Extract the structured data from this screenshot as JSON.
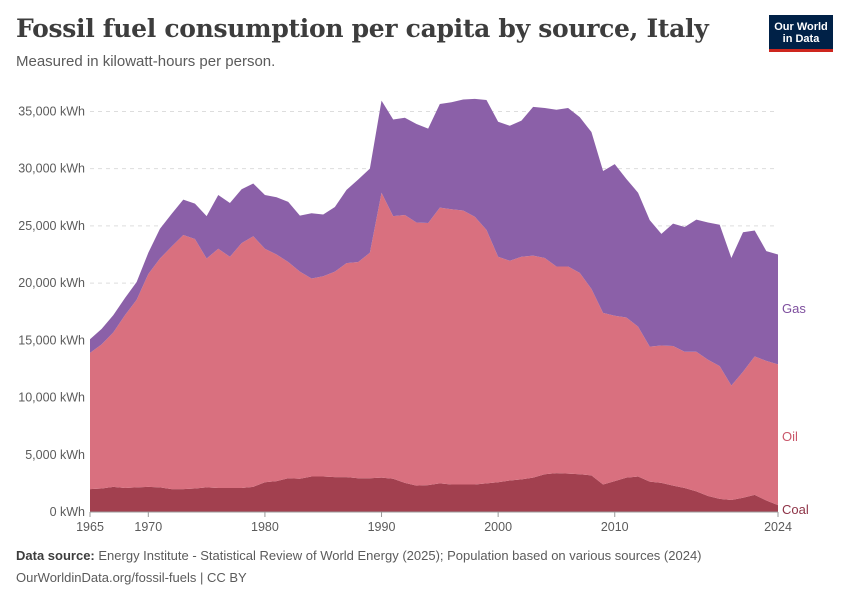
{
  "header": {
    "title": "Fossil fuel consumption per capita by source, Italy",
    "subtitle": "Measured in kilowatt-hours per person."
  },
  "logo": {
    "line1": "Our World",
    "line2": "in Data"
  },
  "footer": {
    "source_label": "Data source:",
    "source_text": "Energy Institute - Statistical Review of World Energy (2025); Population based on various sources (2024)",
    "url_text": "OurWorldinData.org/fossil-fuels | CC BY"
  },
  "chart_data": {
    "type": "area",
    "stacked": true,
    "x": [
      1965,
      1966,
      1967,
      1968,
      1969,
      1970,
      1971,
      1972,
      1973,
      1974,
      1975,
      1976,
      1977,
      1978,
      1979,
      1980,
      1981,
      1982,
      1983,
      1984,
      1985,
      1986,
      1987,
      1988,
      1989,
      1990,
      1991,
      1992,
      1993,
      1994,
      1995,
      1996,
      1997,
      1998,
      1999,
      2000,
      2001,
      2002,
      2003,
      2004,
      2005,
      2006,
      2007,
      2008,
      2009,
      2010,
      2011,
      2012,
      2013,
      2014,
      2015,
      2016,
      2017,
      2018,
      2019,
      2020,
      2021,
      2022,
      2023,
      2024
    ],
    "series": [
      {
        "name": "Coal",
        "color": "#a2404f",
        "values": [
          2000,
          2050,
          2200,
          2100,
          2150,
          2200,
          2150,
          2000,
          2000,
          2050,
          2150,
          2100,
          2100,
          2100,
          2200,
          2600,
          2700,
          2950,
          2900,
          3100,
          3100,
          3050,
          3050,
          2950,
          2950,
          3000,
          2900,
          2550,
          2300,
          2350,
          2500,
          2400,
          2400,
          2400,
          2500,
          2600,
          2750,
          2850,
          3000,
          3300,
          3400,
          3350,
          3300,
          3200,
          2400,
          2700,
          3000,
          3100,
          2650,
          2550,
          2300,
          2100,
          1800,
          1400,
          1150,
          1050,
          1250,
          1500,
          1000,
          600
        ]
      },
      {
        "name": "Oil",
        "color": "#d9707f",
        "values": [
          11900,
          12600,
          13500,
          15100,
          16400,
          18600,
          20000,
          21200,
          22200,
          21800,
          20000,
          20900,
          20200,
          21400,
          21900,
          20400,
          19800,
          18900,
          18100,
          17300,
          17500,
          17950,
          18700,
          18900,
          19700,
          24900,
          22950,
          23400,
          23000,
          22900,
          24100,
          24050,
          23950,
          23400,
          22150,
          19700,
          19200,
          19450,
          19400,
          18900,
          18050,
          18100,
          17600,
          16300,
          15000,
          14450,
          14000,
          13100,
          11800,
          12000,
          12200,
          11900,
          12200,
          11900,
          11600,
          10000,
          11000,
          12100,
          12200,
          12300
        ]
      },
      {
        "name": "Gas",
        "color": "#8b60a8",
        "values": [
          1200,
          1350,
          1500,
          1500,
          1550,
          1850,
          2600,
          2850,
          3100,
          3100,
          3700,
          4700,
          4700,
          4700,
          4600,
          4700,
          5000,
          5250,
          4900,
          5700,
          5400,
          5650,
          6400,
          7200,
          7350,
          8050,
          8450,
          8500,
          8600,
          8250,
          9050,
          9350,
          9700,
          10300,
          11350,
          11800,
          11800,
          11900,
          13000,
          13100,
          13700,
          13850,
          13600,
          13700,
          12400,
          13250,
          12100,
          11700,
          11050,
          9750,
          10700,
          10900,
          11550,
          12000,
          12350,
          11150,
          12200,
          11000,
          9600,
          9600
        ]
      }
    ],
    "y_ticks": [
      {
        "value": 0,
        "label": "0 kWh"
      },
      {
        "value": 5000,
        "label": "5,000 kWh"
      },
      {
        "value": 10000,
        "label": "10,000 kWh"
      },
      {
        "value": 15000,
        "label": "15,000 kWh"
      },
      {
        "value": 20000,
        "label": "20,000 kWh"
      },
      {
        "value": 25000,
        "label": "25,000 kWh"
      },
      {
        "value": 30000,
        "label": "30,000 kWh"
      },
      {
        "value": 35000,
        "label": "35,000 kWh"
      }
    ],
    "x_ticks": [
      {
        "value": 1965,
        "label": "1965"
      },
      {
        "value": 1970,
        "label": "1970"
      },
      {
        "value": 1980,
        "label": "1980"
      },
      {
        "value": 1990,
        "label": "1990"
      },
      {
        "value": 2000,
        "label": "2000"
      },
      {
        "value": 2010,
        "label": "2010"
      },
      {
        "value": 2024,
        "label": "2024"
      }
    ],
    "xlim": [
      1965,
      2024
    ],
    "ylim": [
      0,
      36700
    ],
    "grid": "horizontal-dashed",
    "legend": "right-inline-labels"
  }
}
